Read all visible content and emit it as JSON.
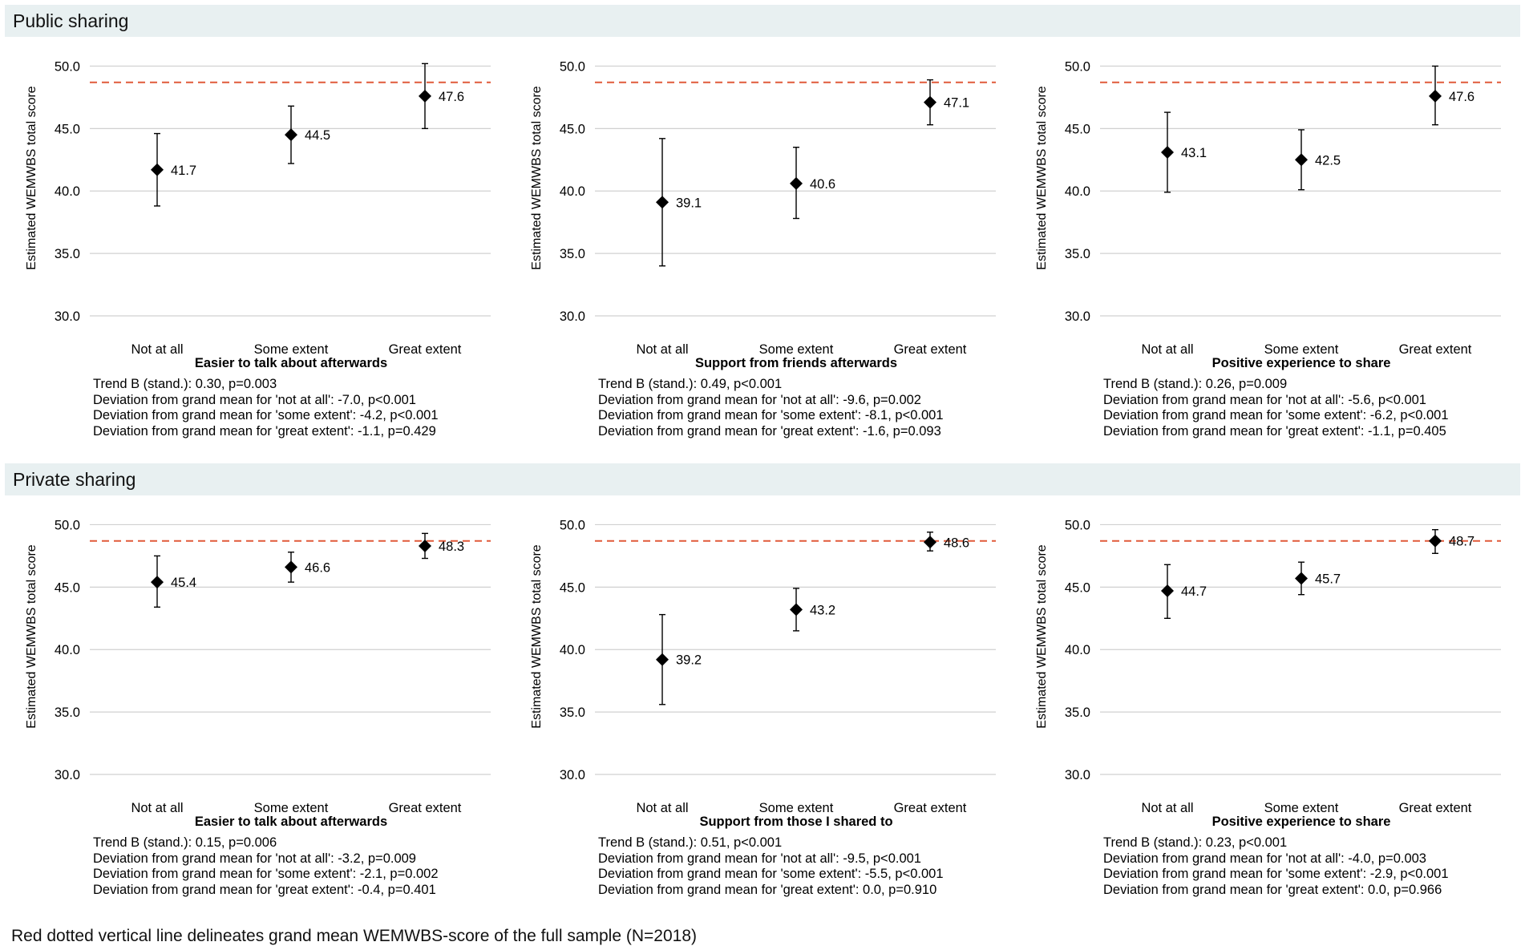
{
  "sections": [
    {
      "title": "Public sharing"
    },
    {
      "title": "Private sharing"
    }
  ],
  "footnote": "Red dotted vertical line delineates grand mean WEMWBS-score of the full sample (N=2018)",
  "colors": {
    "refline": "#e05a3a",
    "grid": "#d0d0d0",
    "marker": "#000000",
    "band": "#e8f0f1"
  },
  "chart_data": [
    {
      "type": "scatter",
      "section": "Public sharing",
      "xlabel": "Easier to talk about afterwards",
      "ylabel": "Estimated WEMWBS total score",
      "categories": [
        "Not at all",
        "Some extent",
        "Great extent"
      ],
      "yticks": [
        "30.0",
        "35.0",
        "40.0",
        "45.0",
        "50.0"
      ],
      "ylim": [
        30,
        50.8
      ],
      "grand_mean": 48.7,
      "values": [
        41.7,
        44.5,
        47.6
      ],
      "labels": [
        "41.7",
        "44.5",
        "47.6"
      ],
      "ci_lower": [
        38.8,
        42.2,
        45.0
      ],
      "ci_upper": [
        44.6,
        46.8,
        50.2
      ],
      "stats": [
        "Trend B (stand.): 0.30, p=0.003",
        "Deviation from grand mean for 'not at all': -7.0, p<0.001",
        "Deviation from grand mean for 'some extent': -4.2, p<0.001",
        "Deviation from grand mean for 'great extent': -1.1, p=0.429"
      ]
    },
    {
      "type": "scatter",
      "section": "Public sharing",
      "xlabel": "Support from friends afterwards",
      "ylabel": "Estimated WEMWBS total score",
      "categories": [
        "Not at all",
        "Some extent",
        "Great extent"
      ],
      "yticks": [
        "30.0",
        "35.0",
        "40.0",
        "45.0",
        "50.0"
      ],
      "ylim": [
        30,
        50.8
      ],
      "grand_mean": 48.7,
      "values": [
        39.1,
        40.6,
        47.1
      ],
      "labels": [
        "39.1",
        "40.6",
        "47.1"
      ],
      "ci_lower": [
        34.0,
        37.8,
        45.3
      ],
      "ci_upper": [
        44.2,
        43.5,
        48.9
      ],
      "stats": [
        "Trend B (stand.): 0.49, p<0.001",
        "Deviation from grand mean for 'not at all': -9.6, p=0.002",
        "Deviation from grand mean for 'some extent': -8.1, p<0.001",
        "Deviation from grand mean for 'great extent': -1.6, p=0.093"
      ]
    },
    {
      "type": "scatter",
      "section": "Public sharing",
      "xlabel": "Positive experience to share",
      "ylabel": "Estimated WEMWBS total score",
      "categories": [
        "Not at all",
        "Some extent",
        "Great extent"
      ],
      "yticks": [
        "30.0",
        "35.0",
        "40.0",
        "45.0",
        "50.0"
      ],
      "ylim": [
        30,
        50.8
      ],
      "grand_mean": 48.7,
      "values": [
        43.1,
        42.5,
        47.6
      ],
      "labels": [
        "43.1",
        "42.5",
        "47.6"
      ],
      "ci_lower": [
        39.9,
        40.1,
        45.3
      ],
      "ci_upper": [
        46.3,
        44.9,
        50.0
      ],
      "stats": [
        "Trend B (stand.): 0.26, p=0.009",
        "Deviation from grand mean for 'not at all': -5.6, p<0.001",
        "Deviation from grand mean for 'some extent': -6.2, p<0.001",
        "Deviation from grand mean for 'great extent': -1.1, p=0.405"
      ]
    },
    {
      "type": "scatter",
      "section": "Private sharing",
      "xlabel": "Easier to talk about afterwards",
      "ylabel": "Estimated WEMWBS total score",
      "categories": [
        "Not at all",
        "Some extent",
        "Great extent"
      ],
      "yticks": [
        "30.0",
        "35.0",
        "40.0",
        "45.0",
        "50.0"
      ],
      "ylim": [
        30,
        50.8
      ],
      "grand_mean": 48.7,
      "values": [
        45.4,
        46.6,
        48.3
      ],
      "labels": [
        "45.4",
        "46.6",
        "48.3"
      ],
      "ci_lower": [
        43.4,
        45.4,
        47.3
      ],
      "ci_upper": [
        47.5,
        47.8,
        49.3
      ],
      "stats": [
        "Trend B (stand.): 0.15, p=0.006",
        "Deviation from grand mean for 'not at all': -3.2, p=0.009",
        "Deviation from grand mean for 'some extent': -2.1, p=0.002",
        "Deviation from grand mean for 'great extent': -0.4, p=0.401"
      ]
    },
    {
      "type": "scatter",
      "section": "Private sharing",
      "xlabel": "Support from those I shared to",
      "ylabel": "Estimated WEMWBS total score",
      "categories": [
        "Not at all",
        "Some extent",
        "Great extent"
      ],
      "yticks": [
        "30.0",
        "35.0",
        "40.0",
        "45.0",
        "50.0"
      ],
      "ylim": [
        30,
        50.8
      ],
      "grand_mean": 48.7,
      "values": [
        39.2,
        43.2,
        48.6
      ],
      "labels": [
        "39.2",
        "43.2",
        "48.6"
      ],
      "ci_lower": [
        35.6,
        41.5,
        47.9
      ],
      "ci_upper": [
        42.8,
        44.9,
        49.4
      ],
      "stats": [
        "Trend B (stand.): 0.51, p<0.001",
        "Deviation from grand mean for 'not at all': -9.5, p<0.001",
        "Deviation from grand mean for 'some extent': -5.5, p<0.001",
        "Deviation from grand mean for 'great extent': 0.0, p=0.910"
      ]
    },
    {
      "type": "scatter",
      "section": "Private sharing",
      "xlabel": "Positive experience to share",
      "ylabel": "Estimated WEMWBS total score",
      "categories": [
        "Not at all",
        "Some extent",
        "Great extent"
      ],
      "yticks": [
        "30.0",
        "35.0",
        "40.0",
        "45.0",
        "50.0"
      ],
      "ylim": [
        30,
        50.8
      ],
      "grand_mean": 48.7,
      "values": [
        44.7,
        45.7,
        48.7
      ],
      "labels": [
        "44.7",
        "45.7",
        "48.7"
      ],
      "ci_lower": [
        42.5,
        44.4,
        47.7
      ],
      "ci_upper": [
        46.8,
        47.0,
        49.6
      ],
      "stats": [
        "Trend B (stand.): 0.23, p<0.001",
        "Deviation from grand mean for 'not at all': -4.0, p=0.003",
        "Deviation from grand mean for 'some extent': -2.9, p<0.001",
        "Deviation from grand mean for 'great extent': 0.0, p=0.966"
      ]
    }
  ]
}
